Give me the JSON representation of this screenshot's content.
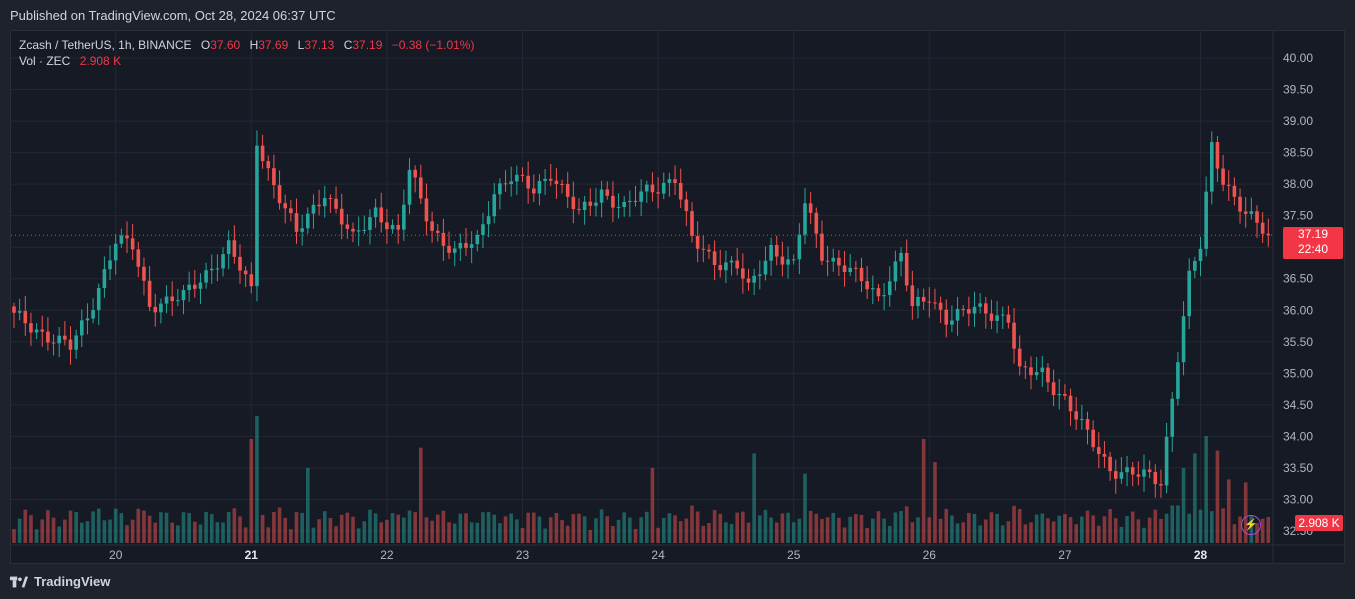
{
  "header": {
    "published": "Published on TradingView.com, Oct 28, 2024 06:37 UTC"
  },
  "legend": {
    "symbol": "Zcash / TetherUS, 1h, BINANCE",
    "o_label": "O",
    "o_value": "37.60",
    "h_label": "H",
    "h_value": "37.69",
    "l_label": "L",
    "l_value": "37.13",
    "c_label": "C",
    "c_value": "37.19",
    "change": "−0.38 (−1.01%)",
    "vol_label": "Vol · ZEC",
    "vol_value": "2.908 K"
  },
  "price_badge": {
    "price": "37.19",
    "countdown": "22:40"
  },
  "volume_badge": {
    "value": "2.908 K"
  },
  "footer": {
    "brand": "TradingView"
  },
  "colors": {
    "up": "#26a69a",
    "down": "#ef5350",
    "bg": "#161a25",
    "grid": "#232733",
    "text": "#b2b5be",
    "accent": "#f23645"
  },
  "chart_data": {
    "type": "candlestick",
    "interval": "1h",
    "ylim": [
      32.5,
      40.0
    ],
    "y_ticks": [
      "40.00",
      "39.50",
      "39.00",
      "38.50",
      "38.00",
      "37.50",
      "37.00",
      "36.50",
      "36.00",
      "35.50",
      "35.00",
      "34.50",
      "34.00",
      "33.50",
      "33.00",
      "32.50"
    ],
    "x_ticks": [
      {
        "label": "20",
        "index": 18,
        "bold": false
      },
      {
        "label": "21",
        "index": 42,
        "bold": true
      },
      {
        "label": "22",
        "index": 66,
        "bold": false
      },
      {
        "label": "23",
        "index": 90,
        "bold": false
      },
      {
        "label": "24",
        "index": 114,
        "bold": false
      },
      {
        "label": "25",
        "index": 138,
        "bold": false
      },
      {
        "label": "26",
        "index": 162,
        "bold": false
      },
      {
        "label": "27",
        "index": 186,
        "bold": false
      },
      {
        "label": "28",
        "index": 210,
        "bold": true
      }
    ],
    "current_price": 37.19,
    "x_count": 223,
    "close_anchors": [
      [
        0,
        35.9
      ],
      [
        10,
        35.4
      ],
      [
        13,
        35.9
      ],
      [
        18,
        37.1
      ],
      [
        21,
        37.0
      ],
      [
        24,
        36.1
      ],
      [
        30,
        36.2
      ],
      [
        38,
        37.0
      ],
      [
        42,
        36.3
      ],
      [
        43,
        38.7
      ],
      [
        46,
        38.0
      ],
      [
        50,
        37.2
      ],
      [
        55,
        37.9
      ],
      [
        60,
        37.1
      ],
      [
        64,
        37.6
      ],
      [
        68,
        37.2
      ],
      [
        70,
        38.2
      ],
      [
        74,
        37.3
      ],
      [
        78,
        36.9
      ],
      [
        82,
        37.1
      ],
      [
        85,
        37.9
      ],
      [
        88,
        38.1
      ],
      [
        92,
        37.9
      ],
      [
        95,
        38.2
      ],
      [
        100,
        37.5
      ],
      [
        104,
        37.9
      ],
      [
        108,
        37.6
      ],
      [
        112,
        37.9
      ],
      [
        117,
        38.1
      ],
      [
        120,
        37.1
      ],
      [
        124,
        36.8
      ],
      [
        128,
        36.7
      ],
      [
        130,
        36.3
      ],
      [
        134,
        37.0
      ],
      [
        138,
        36.7
      ],
      [
        140,
        37.7
      ],
      [
        143,
        36.9
      ],
      [
        147,
        36.7
      ],
      [
        153,
        36.2
      ],
      [
        157,
        36.9
      ],
      [
        159,
        36.0
      ],
      [
        162,
        36.2
      ],
      [
        165,
        35.9
      ],
      [
        170,
        36.0
      ],
      [
        176,
        35.9
      ],
      [
        178,
        35.0
      ],
      [
        182,
        35.0
      ],
      [
        186,
        34.6
      ],
      [
        190,
        34.0
      ],
      [
        194,
        33.5
      ],
      [
        198,
        33.4
      ],
      [
        203,
        33.3
      ],
      [
        206,
        35.3
      ],
      [
        208,
        36.5
      ],
      [
        210,
        37.0
      ],
      [
        212,
        38.6
      ],
      [
        214,
        38.1
      ],
      [
        218,
        37.5
      ],
      [
        222,
        37.19
      ]
    ],
    "volume_spikes": [
      [
        43,
        4.4
      ],
      [
        42,
        3.6
      ],
      [
        52,
        2.6
      ],
      [
        72,
        3.3
      ],
      [
        113,
        2.6
      ],
      [
        131,
        3.1
      ],
      [
        140,
        2.4
      ],
      [
        161,
        3.6
      ],
      [
        163,
        2.8
      ],
      [
        206,
        1.3
      ],
      [
        207,
        2.6
      ],
      [
        209,
        3.1
      ],
      [
        211,
        3.7
      ],
      [
        213,
        3.2
      ],
      [
        215,
        2.2
      ],
      [
        218,
        2.1
      ],
      [
        222,
        0.9
      ]
    ]
  }
}
